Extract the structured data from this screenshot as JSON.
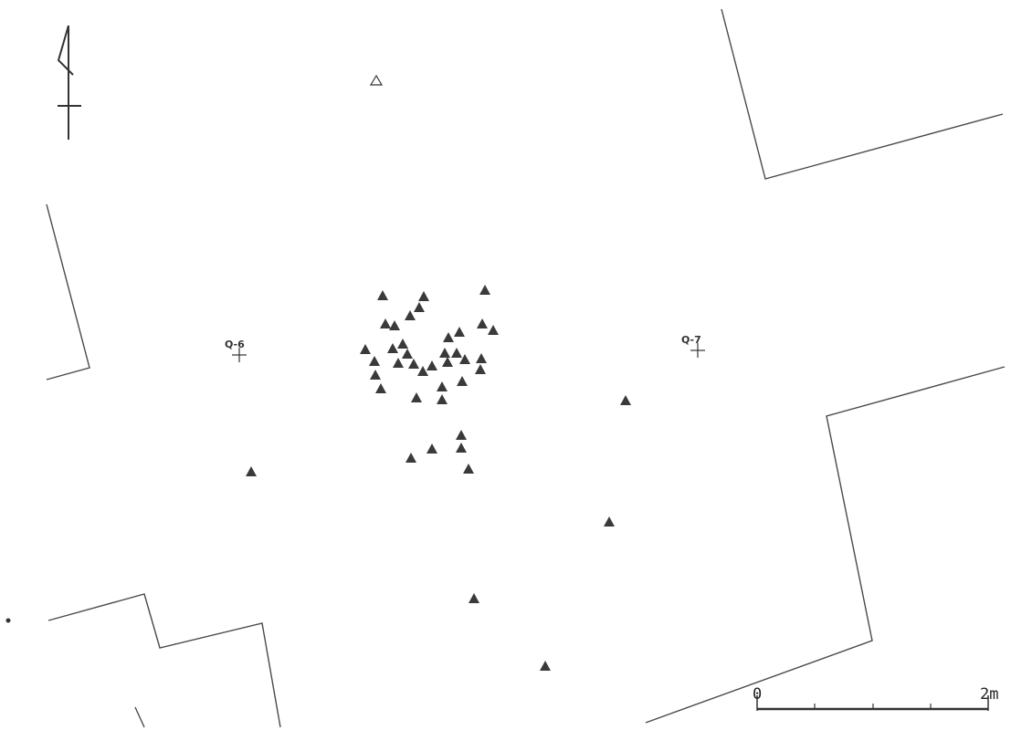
{
  "map": {
    "grid_points": [
      {
        "label": "Q-6"
      },
      {
        "label": "Q-7"
      }
    ],
    "scale_bar": {
      "start_label": "0",
      "end_label": "2m"
    },
    "north_arrow": {
      "icon": "north-arrow-icon"
    },
    "legend_symbols": {
      "filled": "filled-triangle-icon",
      "open": "open-triangle-icon"
    },
    "colors": {
      "line": "#4a4a4a",
      "marker": "#3a3a3a",
      "background": "#ffffff"
    }
  }
}
